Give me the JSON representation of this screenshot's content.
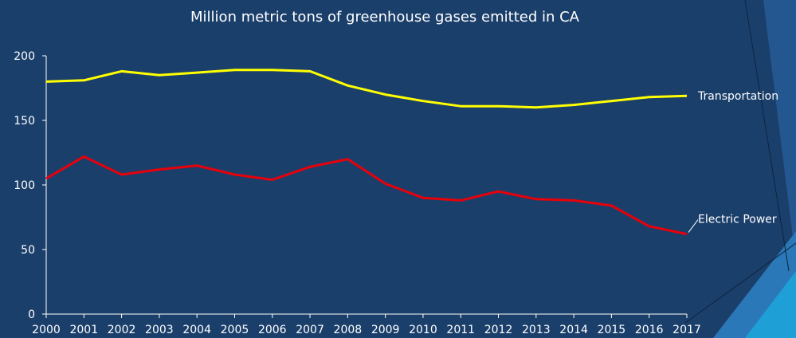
{
  "chart_data": {
    "type": "line",
    "title": "Million metric tons of greenhouse gases emitted in CA",
    "xlabel": "",
    "ylabel": "",
    "x": [
      "2000",
      "2001",
      "2002",
      "2003",
      "2004",
      "2005",
      "2006",
      "2007",
      "2008",
      "2009",
      "2010",
      "2011",
      "2012",
      "2013",
      "2014",
      "2015",
      "2016",
      "2017"
    ],
    "ylim": [
      0,
      200
    ],
    "yticks": [
      0,
      50,
      100,
      150,
      200
    ],
    "grid": false,
    "legend": "inline-end-labels",
    "series": [
      {
        "name": "Transportation",
        "color": "#ffff00",
        "values": [
          180,
          181,
          188,
          185,
          187,
          189,
          189,
          188,
          177,
          170,
          165,
          161,
          161,
          160,
          162,
          165,
          168,
          169
        ]
      },
      {
        "name": "Electric Power",
        "color": "#e8000b",
        "values": [
          105,
          122,
          108,
          112,
          115,
          108,
          104,
          114,
          120,
          101,
          90,
          88,
          95,
          89,
          88,
          84,
          68,
          62
        ]
      }
    ]
  }
}
